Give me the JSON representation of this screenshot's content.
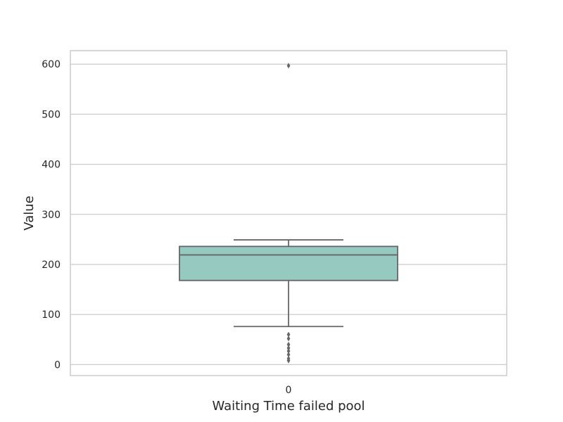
{
  "chart_data": {
    "type": "box",
    "title": "",
    "xlabel": "Waiting Time failed pool",
    "ylabel": "Value",
    "categories": [
      "0"
    ],
    "ylim": [
      -22,
      627
    ],
    "yticks": [
      0,
      100,
      200,
      300,
      400,
      500,
      600
    ],
    "grid": "horizontal",
    "box": {
      "category": "0",
      "whisker_low": 76,
      "q1": 168,
      "median": 219,
      "q3": 236,
      "whisker_high": 249,
      "outliers": [
        597,
        60,
        52,
        40,
        33,
        27,
        20,
        12,
        8
      ]
    },
    "colors": {
      "box_fill": "#96cac1",
      "line": "#666666",
      "grid": "#cccccc",
      "frame": "#cccccc",
      "text": "#262626"
    }
  }
}
